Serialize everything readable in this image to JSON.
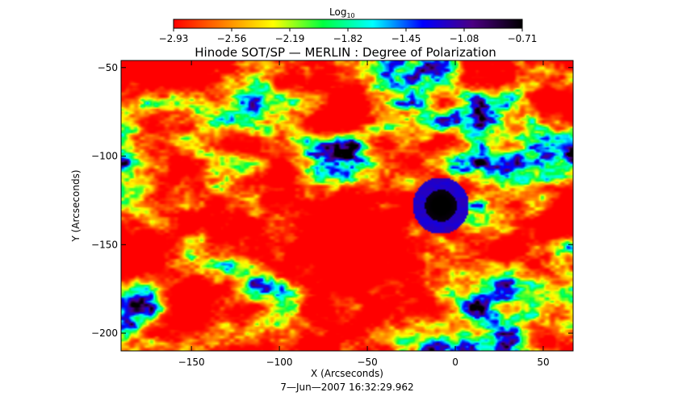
{
  "chart_data": {
    "type": "heatmap",
    "title": "Hinode SOT/SP — MERLIN : Degree of Polarization",
    "xlabel": "X (Arcseconds)",
    "ylabel": "Y (Arcseconds)",
    "timestamp": "7—Jun—2007 16:32:29.962",
    "xlim": [
      -190,
      67
    ],
    "ylim": [
      -210,
      -46
    ],
    "x_ticks": [
      -150,
      -100,
      -50,
      0,
      50
    ],
    "x_tick_labels": [
      "−150",
      "−100",
      "−50",
      "0",
      "50"
    ],
    "y_ticks": [
      -50,
      -100,
      -150,
      -200
    ],
    "y_tick_labels": [
      "−50",
      "−100",
      "−150",
      "−200"
    ],
    "colorbar": {
      "label": "Log",
      "label_subscript": "10",
      "range": [
        -2.93,
        -0.71
      ],
      "ticks": [
        -2.93,
        -2.56,
        -2.19,
        -1.82,
        -1.45,
        -1.08,
        -0.71
      ],
      "tick_labels": [
        "−2.93",
        "−2.56",
        "−2.19",
        "−1.82",
        "−1.45",
        "−1.08",
        "−0.71"
      ],
      "colormap": [
        "#ff0000",
        "#ff7f00",
        "#ffff00",
        "#00ff3f",
        "#00ffff",
        "#0000ff",
        "#4b0082",
        "#000000"
      ]
    },
    "features": [
      {
        "type": "sunspot-umbra",
        "x": -8,
        "y": -128,
        "radius": 9,
        "value": -0.75
      },
      {
        "type": "penumbra-ring",
        "x": -8,
        "y": -128,
        "radius": 16,
        "value": -1.15
      }
    ]
  }
}
